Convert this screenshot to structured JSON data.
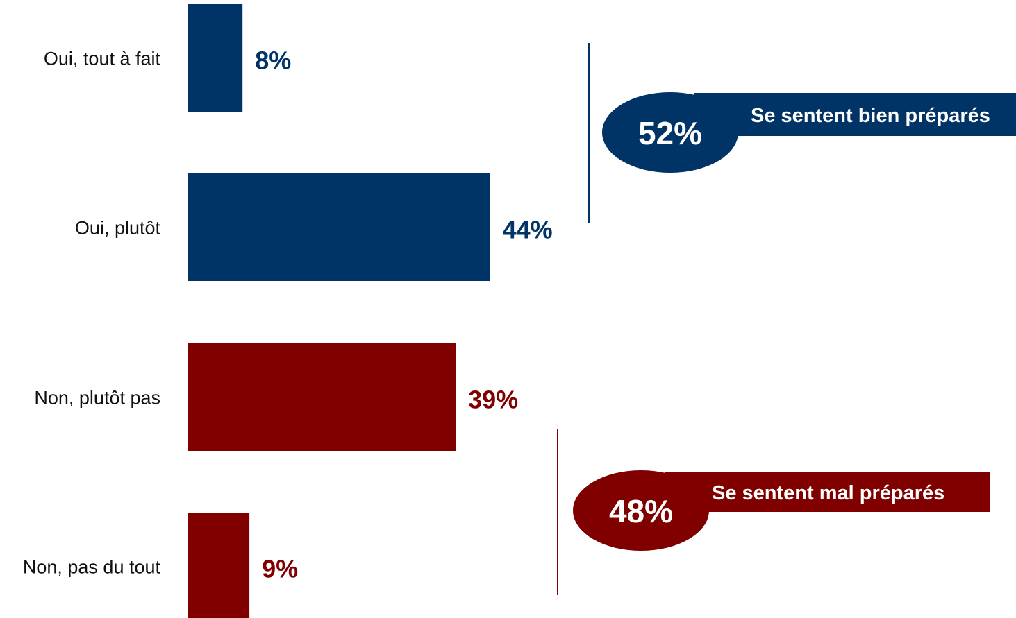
{
  "chart_data": {
    "type": "bar",
    "orientation": "horizontal",
    "categories": [
      "Oui, tout à fait",
      "Oui, plutôt",
      "Non, plutôt pas",
      "Non, pas du tout"
    ],
    "values": [
      8,
      44,
      39,
      9
    ],
    "value_labels": [
      "8%",
      "44%",
      "39%",
      "9%"
    ],
    "bar_colors": [
      "#003366",
      "#003366",
      "#800000",
      "#800000"
    ],
    "xlim": [
      0,
      50
    ],
    "title": "",
    "xlabel": "",
    "ylabel": "",
    "grid": false,
    "legend": "none",
    "summaries": [
      {
        "value": "52%",
        "text": "Se sentent bien préparés",
        "color": "#003366",
        "groups": [
          0,
          1
        ]
      },
      {
        "value": "48%",
        "text": "Se sentent mal préparés",
        "color": "#800000",
        "groups": [
          2,
          3
        ]
      }
    ]
  }
}
